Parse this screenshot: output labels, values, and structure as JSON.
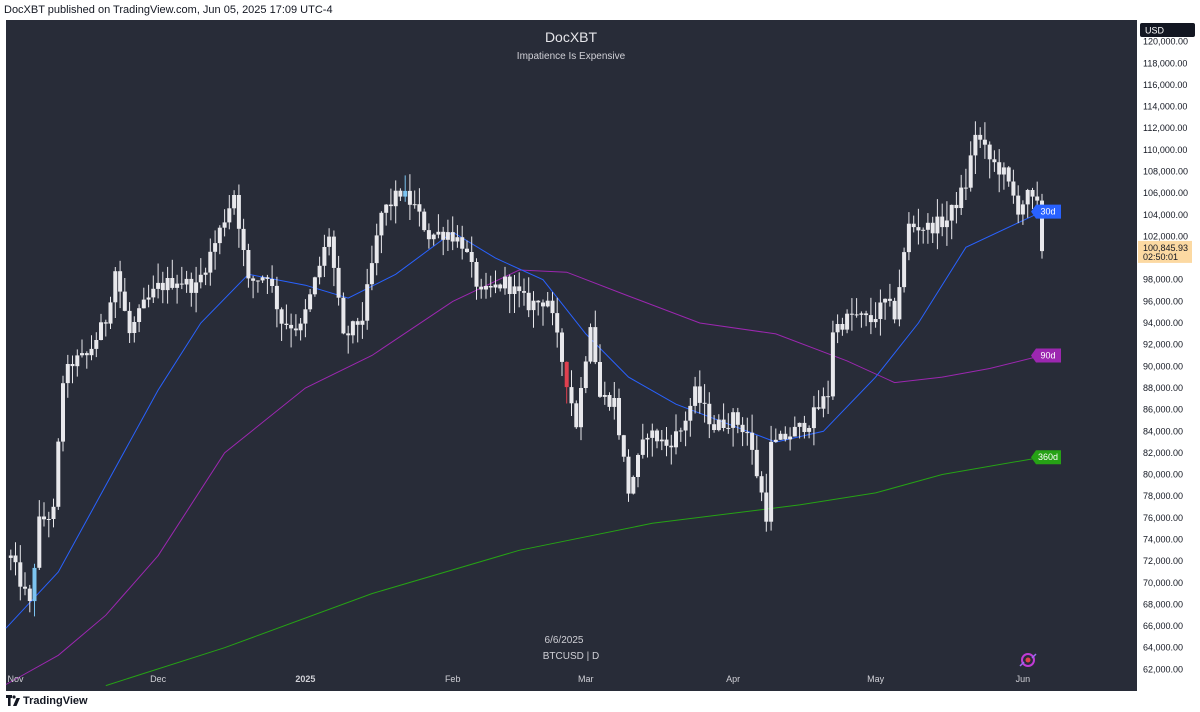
{
  "header": {
    "publisher": "DocXBT published on TradingView.com, Jun 05, 2025 17:09 UTC-4"
  },
  "footer": {
    "brand": "TradingView"
  },
  "colors": {
    "background": "#282c38",
    "candle": "#e8e8ec",
    "candle_blue": "#7cc4f0",
    "candle_red": "#e0404f",
    "ma30": "#2962ff",
    "ma90": "#9c27b0",
    "ma360": "#26a215",
    "price_label_bg": "#fcd9a2"
  },
  "chart_data": {
    "type": "candlestick",
    "title": "DocXBT",
    "subtitle": "Impatience Is Expensive",
    "bottom_date": "6/6/2025",
    "symbol_label": "BTCUSD | D",
    "currency": "USD",
    "ylim": [
      60000,
      122000
    ],
    "y_ticks": [
      62000,
      64000,
      66000,
      68000,
      70000,
      72000,
      74000,
      76000,
      78000,
      80000,
      82000,
      84000,
      86000,
      88000,
      90000,
      92000,
      94000,
      96000,
      98000,
      100000,
      102000,
      104000,
      106000,
      108000,
      110000,
      112000,
      114000,
      116000,
      118000,
      120000
    ],
    "x_range": [
      "2024-10-30",
      "2025-06-25"
    ],
    "x_ticks": [
      {
        "date": "2024-11-01",
        "label": "Nov",
        "bold": false
      },
      {
        "date": "2024-12-01",
        "label": "Dec",
        "bold": false
      },
      {
        "date": "2025-01-01",
        "label": "2025",
        "bold": true
      },
      {
        "date": "2025-02-01",
        "label": "Feb",
        "bold": false
      },
      {
        "date": "2025-03-01",
        "label": "Mar",
        "bold": false
      },
      {
        "date": "2025-04-01",
        "label": "Apr",
        "bold": false
      },
      {
        "date": "2025-05-01",
        "label": "May",
        "bold": false
      },
      {
        "date": "2025-06-01",
        "label": "Jun",
        "bold": false
      }
    ],
    "last_price": {
      "value": 100845.93,
      "label": "100,845.93",
      "countdown": "02:50:01"
    },
    "ma_labels": [
      {
        "name": "30d",
        "value": 104300,
        "color": "#2962ff"
      },
      {
        "name": "90d",
        "value": 91000,
        "color": "#9c27b0"
      },
      {
        "name": "360d",
        "value": 81600,
        "color": "#26a215"
      }
    ],
    "price_path": [
      [
        "2024-10-31",
        72300
      ],
      [
        "2024-11-04",
        67900
      ],
      [
        "2024-11-06",
        75600
      ],
      [
        "2024-11-09",
        76500
      ],
      [
        "2024-11-11",
        88700
      ],
      [
        "2024-11-13",
        90400
      ],
      [
        "2024-11-16",
        90900
      ],
      [
        "2024-11-20",
        94300
      ],
      [
        "2024-11-22",
        98900
      ],
      [
        "2024-11-25",
        93000
      ],
      [
        "2024-11-28",
        95600
      ],
      [
        "2024-12-01",
        97300
      ],
      [
        "2024-12-05",
        98000
      ],
      [
        "2024-12-09",
        97300
      ],
      [
        "2024-12-13",
        101400
      ],
      [
        "2024-12-17",
        106000
      ],
      [
        "2024-12-20",
        97700
      ],
      [
        "2024-12-24",
        98600
      ],
      [
        "2024-12-27",
        94200
      ],
      [
        "2024-12-31",
        93500
      ],
      [
        "2025-01-06",
        102200
      ],
      [
        "2025-01-09",
        92500
      ],
      [
        "2025-01-13",
        94500
      ],
      [
        "2025-01-17",
        104100
      ],
      [
        "2025-01-21",
        106100
      ],
      [
        "2025-01-24",
        104700
      ],
      [
        "2025-01-27",
        102100
      ],
      [
        "2025-01-31",
        102400
      ],
      [
        "2025-02-03",
        101400
      ],
      [
        "2025-02-07",
        96500
      ],
      [
        "2025-02-12",
        97800
      ],
      [
        "2025-02-17",
        95700
      ],
      [
        "2025-02-21",
        96200
      ],
      [
        "2025-02-25",
        88700
      ],
      [
        "2025-02-27",
        84700
      ],
      [
        "2025-03-02",
        94200
      ],
      [
        "2025-03-04",
        87200
      ],
      [
        "2025-03-07",
        86800
      ],
      [
        "2025-03-10",
        78500
      ],
      [
        "2025-03-14",
        84000
      ],
      [
        "2025-03-18",
        82700
      ],
      [
        "2025-03-21",
        84100
      ],
      [
        "2025-03-24",
        87500
      ],
      [
        "2025-03-28",
        84400
      ],
      [
        "2025-04-01",
        85200
      ],
      [
        "2025-04-04",
        83900
      ],
      [
        "2025-04-08",
        76300
      ],
      [
        "2025-04-09",
        82600
      ],
      [
        "2025-04-13",
        83700
      ],
      [
        "2025-04-17",
        84900
      ],
      [
        "2025-04-21",
        87500
      ],
      [
        "2025-04-22",
        93400
      ],
      [
        "2025-04-26",
        94700
      ],
      [
        "2025-04-30",
        94200
      ],
      [
        "2025-05-03",
        95900
      ],
      [
        "2025-05-05",
        94800
      ],
      [
        "2025-05-08",
        103000
      ],
      [
        "2025-05-12",
        102800
      ],
      [
        "2025-05-16",
        103500
      ],
      [
        "2025-05-20",
        106800
      ],
      [
        "2025-05-22",
        111600
      ],
      [
        "2025-05-25",
        109100
      ],
      [
        "2025-05-28",
        107800
      ],
      [
        "2025-05-31",
        104600
      ],
      [
        "2025-06-02",
        105700
      ],
      [
        "2025-06-04",
        104700
      ],
      [
        "2025-06-05",
        100900
      ]
    ],
    "ma30_path": [
      [
        "2024-10-30",
        65800
      ],
      [
        "2024-11-10",
        71000
      ],
      [
        "2024-11-20",
        79000
      ],
      [
        "2024-12-01",
        87800
      ],
      [
        "2024-12-10",
        94000
      ],
      [
        "2024-12-20",
        98500
      ],
      [
        "2025-01-01",
        97500
      ],
      [
        "2025-01-10",
        96300
      ],
      [
        "2025-01-20",
        98500
      ],
      [
        "2025-02-01",
        102400
      ],
      [
        "2025-02-10",
        100000
      ],
      [
        "2025-02-20",
        98000
      ],
      [
        "2025-03-01",
        93000
      ],
      [
        "2025-03-10",
        89000
      ],
      [
        "2025-03-20",
        86500
      ],
      [
        "2025-04-01",
        84500
      ],
      [
        "2025-04-10",
        83000
      ],
      [
        "2025-04-20",
        84000
      ],
      [
        "2025-05-01",
        89000
      ],
      [
        "2025-05-10",
        94000
      ],
      [
        "2025-05-20",
        101000
      ],
      [
        "2025-06-05",
        104300
      ]
    ],
    "ma90_path": [
      [
        "2024-10-30",
        60600
      ],
      [
        "2024-11-10",
        63300
      ],
      [
        "2024-11-20",
        67000
      ],
      [
        "2024-12-01",
        72500
      ],
      [
        "2024-12-15",
        82000
      ],
      [
        "2025-01-01",
        88000
      ],
      [
        "2025-01-15",
        91000
      ],
      [
        "2025-02-01",
        96000
      ],
      [
        "2025-02-15",
        98900
      ],
      [
        "2025-02-25",
        98700
      ],
      [
        "2025-03-10",
        96500
      ],
      [
        "2025-03-25",
        94000
      ],
      [
        "2025-04-10",
        93000
      ],
      [
        "2025-04-25",
        90500
      ],
      [
        "2025-05-05",
        88500
      ],
      [
        "2025-05-15",
        89000
      ],
      [
        "2025-05-25",
        89800
      ],
      [
        "2025-06-05",
        91000
      ]
    ],
    "ma360_path": [
      [
        "2024-11-20",
        60500
      ],
      [
        "2024-12-15",
        64000
      ],
      [
        "2025-01-15",
        69000
      ],
      [
        "2025-02-15",
        73000
      ],
      [
        "2025-03-15",
        75500
      ],
      [
        "2025-04-15",
        77200
      ],
      [
        "2025-05-01",
        78300
      ],
      [
        "2025-05-15",
        80000
      ],
      [
        "2025-06-05",
        81600
      ]
    ]
  }
}
